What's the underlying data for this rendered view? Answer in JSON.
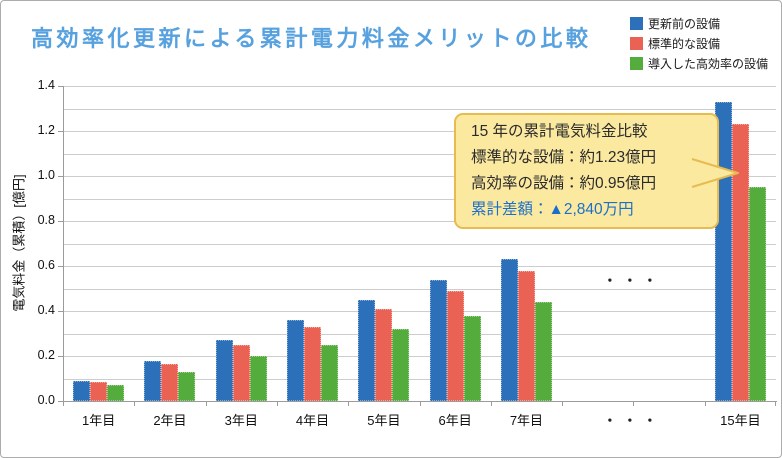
{
  "title": "高効率化更新による累計電力料金メリットの比較",
  "colors": {
    "title": "#58a1df",
    "grid": "#cdcdcd",
    "axis": "#9b9b9b",
    "frame_border": "#acacac",
    "callout_bg": "#fbe9a0",
    "callout_border": "#e7ba52",
    "callout_text": "#2b2b2b",
    "callout_accent": "#1c6fc8"
  },
  "chart_data": {
    "type": "bar",
    "title": "高効率化更新による累計電力料金メリットの比較",
    "categories": [
      "1年目",
      "2年目",
      "3年目",
      "4年目",
      "5年目",
      "6年目",
      "7年目",
      "・・・",
      "15年目"
    ],
    "gap_marker": "・・・",
    "series": [
      {
        "name": "更新前の設備",
        "color": "#2b70b8",
        "values": [
          0.09,
          0.18,
          0.27,
          0.36,
          0.45,
          0.54,
          0.63,
          null,
          1.33
        ]
      },
      {
        "name": "標準的な設備",
        "color": "#ea6254",
        "values": [
          0.085,
          0.165,
          0.25,
          0.33,
          0.41,
          0.49,
          0.58,
          null,
          1.23
        ]
      },
      {
        "name": "導入した高効率の設備",
        "color": "#53ac3c",
        "values": [
          0.07,
          0.13,
          0.2,
          0.25,
          0.32,
          0.38,
          0.44,
          null,
          0.95
        ]
      }
    ],
    "xlabel": "",
    "ylabel": "電気料金（累積）[億円]",
    "ylim": [
      0,
      1.4
    ],
    "ytick_step": 0.2,
    "yticks": [
      "0.0",
      "0.2",
      "0.4",
      "0.6",
      "0.8",
      "1.0",
      "1.2",
      "1.4"
    ],
    "grid_step": 0.1,
    "grid": true,
    "legend_position": "top-right"
  },
  "callout": {
    "lines": [
      {
        "text": "15 年の累計電気料金比較",
        "accent": false
      },
      {
        "text": "標準的な設備：約1.23億円",
        "accent": false
      },
      {
        "text": "高効率の設備：約0.95億円",
        "accent": false
      },
      {
        "text": "累計差額：▲2,840万円",
        "accent": true
      }
    ]
  }
}
